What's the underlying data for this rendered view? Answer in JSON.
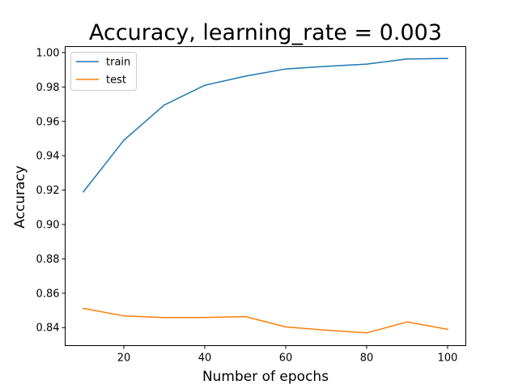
{
  "chart_data": {
    "type": "line",
    "title": "Accuracy, learning_rate = 0.003",
    "xlabel": "Number of epochs",
    "ylabel": "Accuracy",
    "x": [
      10,
      20,
      30,
      40,
      50,
      60,
      70,
      80,
      90,
      100
    ],
    "x_ticks": [
      20,
      40,
      60,
      80,
      100
    ],
    "xlim": [
      5.5,
      104.5
    ],
    "y_ticks": [
      0.84,
      0.86,
      0.88,
      0.9,
      0.92,
      0.94,
      0.96,
      0.98,
      1.0
    ],
    "ylim": [
      0.8295,
      1.0035
    ],
    "series": [
      {
        "name": "train",
        "color": "#1f77b4",
        "values": [
          0.919,
          0.949,
          0.9695,
          0.981,
          0.9863,
          0.9905,
          0.992,
          0.9933,
          0.9963,
          0.9966
        ]
      },
      {
        "name": "test",
        "color": "#ff7f0e",
        "values": [
          0.8512,
          0.8468,
          0.8458,
          0.8459,
          0.8464,
          0.8404,
          0.8385,
          0.8369,
          0.8433,
          0.839
        ]
      }
    ],
    "grid": false,
    "legend_position": "upper-left"
  }
}
